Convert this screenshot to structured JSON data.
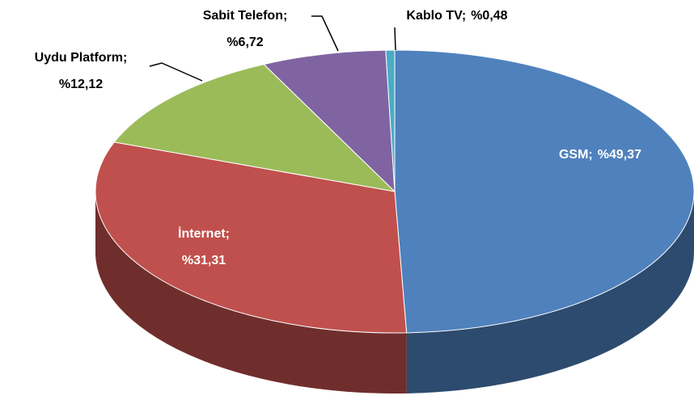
{
  "chart_data": {
    "type": "pie",
    "three_d": true,
    "categories": [
      "GSM",
      "İnternet",
      "Uydu Platform",
      "Sabit Telefon",
      "Kablo TV"
    ],
    "values": [
      49.37,
      31.31,
      12.12,
      6.72,
      0.48
    ],
    "value_labels": [
      "%49,37",
      "%31,31",
      "%12,12",
      "%6,72",
      "%0,48"
    ],
    "label_separator": ";",
    "colors": [
      "#4f81bd",
      "#c0504d",
      "#9bbb59",
      "#8064a2",
      "#4bacc6"
    ]
  }
}
